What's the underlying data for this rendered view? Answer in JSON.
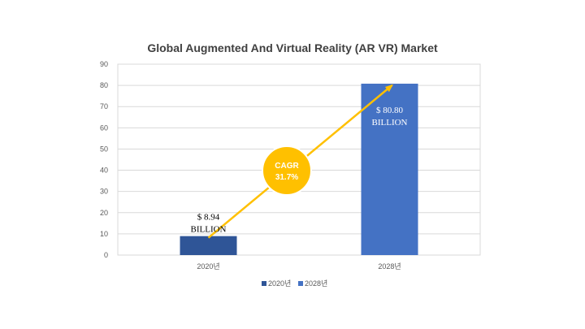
{
  "chart_data": {
    "type": "bar",
    "title": "Global Augmented And Virtual Reality (AR VR) Market",
    "categories": [
      "2020년",
      "2028년"
    ],
    "values": [
      8.94,
      80.8
    ],
    "colors": [
      "#2F5597",
      "#4472C4"
    ],
    "ylim": [
      0,
      90
    ],
    "yticks": [
      0,
      10,
      20,
      30,
      40,
      50,
      60,
      70,
      80,
      90
    ],
    "grid": true,
    "legend_position": "bottom",
    "legend": [
      "2020년",
      "2028년"
    ],
    "annotations": {
      "label_2020_line1": "$ 8.94",
      "label_2020_line2": "BILLION",
      "label_2028_line1": "$ 80.80",
      "label_2028_line2": "BILLION",
      "cagr_line1": "CAGR",
      "cagr_line2": "31.7%"
    },
    "accent_color": "#FFC000"
  }
}
